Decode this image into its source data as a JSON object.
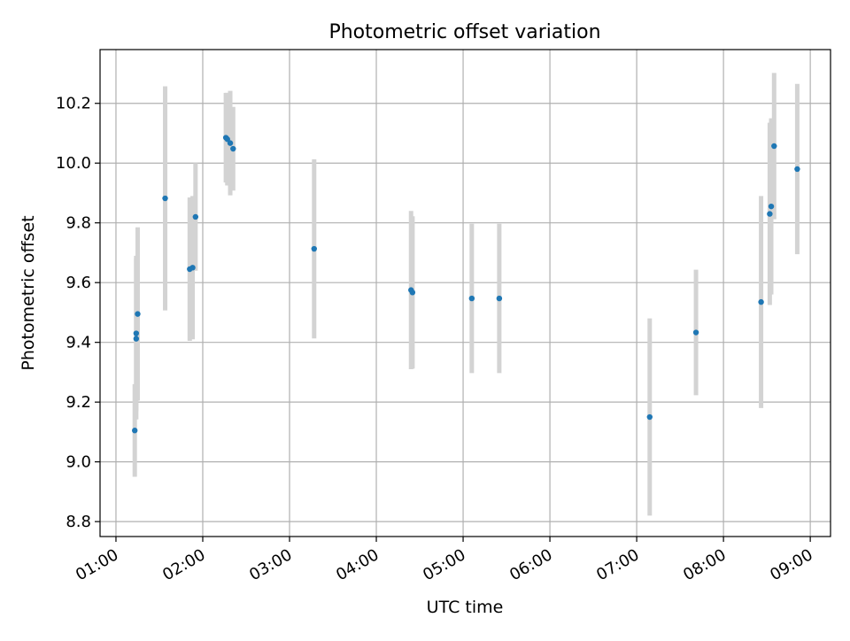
{
  "chart_data": {
    "type": "scatter",
    "title": "Photometric offset variation",
    "xlabel": "UTC time",
    "ylabel": "Photometric offset",
    "x_unit": "UTC hours",
    "xlim": [
      "00:49",
      "09:14"
    ],
    "ylim": [
      8.75,
      10.38
    ],
    "x_ticks": [
      "01:00",
      "02:00",
      "03:00",
      "04:00",
      "05:00",
      "06:00",
      "07:00",
      "08:00",
      "09:00"
    ],
    "y_ticks": [
      "8.8",
      "9.0",
      "9.2",
      "9.4",
      "9.6",
      "9.8",
      "10.0",
      "10.2"
    ],
    "grid": true,
    "point_color": "#1f77b4",
    "errorbar_color": "#d3d3d3",
    "points": [
      {
        "time": "01:13",
        "y": 9.105,
        "yerr": 0.155
      },
      {
        "time": "01:14",
        "y": 9.412,
        "yerr": 0.27
      },
      {
        "time": "01:14",
        "y": 9.43,
        "yerr": 0.26
      },
      {
        "time": "01:15",
        "y": 9.495,
        "yerr": 0.29
      },
      {
        "time": "01:34",
        "y": 9.882,
        "yerr": 0.375
      },
      {
        "time": "01:51",
        "y": 9.645,
        "yerr": 0.24
      },
      {
        "time": "01:53",
        "y": 9.65,
        "yerr": 0.24
      },
      {
        "time": "01:55",
        "y": 9.82,
        "yerr": 0.18
      },
      {
        "time": "02:16",
        "y": 10.085,
        "yerr": 0.15
      },
      {
        "time": "02:17",
        "y": 10.08,
        "yerr": 0.155
      },
      {
        "time": "02:19",
        "y": 10.067,
        "yerr": 0.175
      },
      {
        "time": "02:21",
        "y": 10.048,
        "yerr": 0.14
      },
      {
        "time": "03:17",
        "y": 9.713,
        "yerr": 0.3
      },
      {
        "time": "04:24",
        "y": 9.575,
        "yerr": 0.265
      },
      {
        "time": "04:25",
        "y": 9.567,
        "yerr": 0.255
      },
      {
        "time": "05:06",
        "y": 9.547,
        "yerr": 0.25
      },
      {
        "time": "05:25",
        "y": 9.547,
        "yerr": 0.25
      },
      {
        "time": "07:09",
        "y": 9.15,
        "yerr": 0.33
      },
      {
        "time": "07:41",
        "y": 9.433,
        "yerr": 0.21
      },
      {
        "time": "08:26",
        "y": 9.535,
        "yerr": 0.355
      },
      {
        "time": "08:32",
        "y": 9.83,
        "yerr": 0.305
      },
      {
        "time": "08:33",
        "y": 9.855,
        "yerr": 0.295
      },
      {
        "time": "08:35",
        "y": 10.057,
        "yerr": 0.245
      },
      {
        "time": "08:51",
        "y": 9.98,
        "yerr": 0.285
      }
    ]
  }
}
